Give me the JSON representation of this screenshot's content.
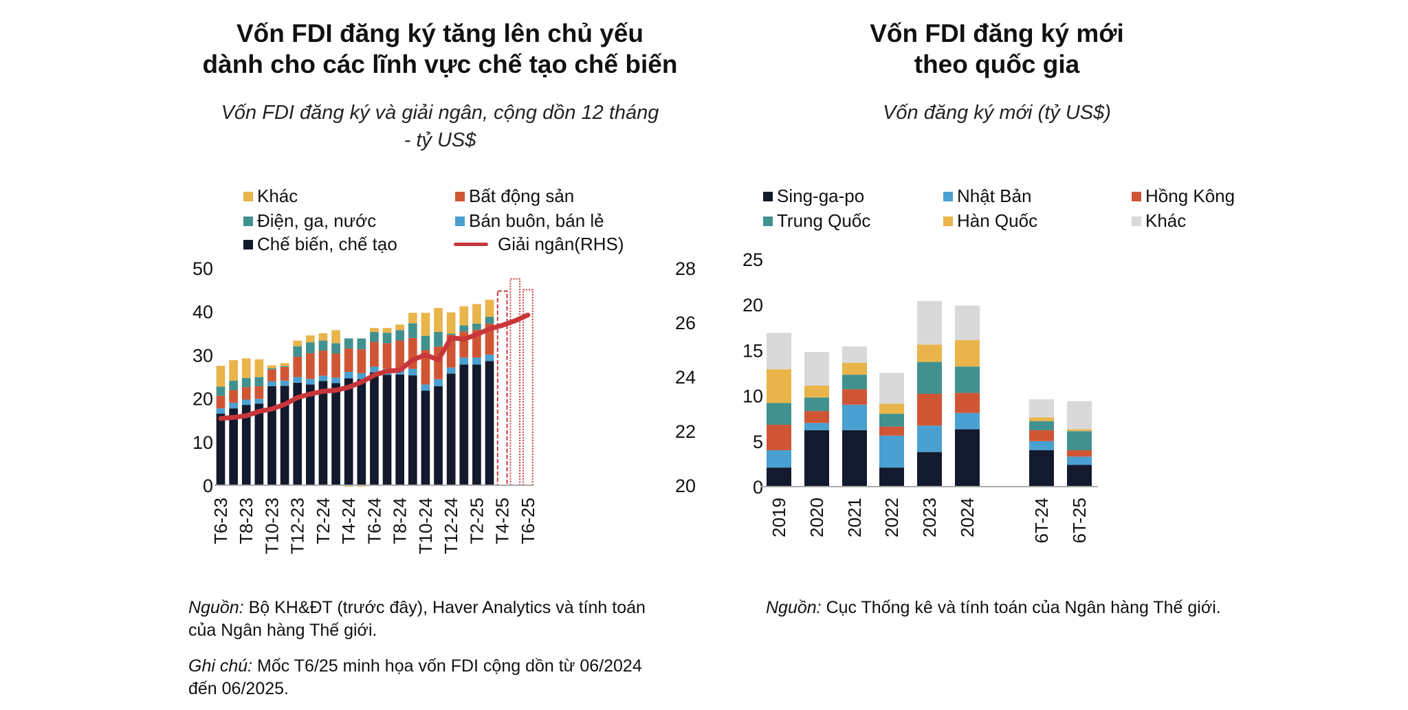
{
  "chart_data": [
    {
      "type": "bar",
      "stacked": true,
      "title": "Vốn FDI đăng ký tăng lên chủ yếu dành cho các lĩnh vực chế tạo chế biến",
      "title_lines": [
        "Vốn FDI đăng ký tăng lên chủ yếu",
        "dành cho các lĩnh vực chế tạo chế biến"
      ],
      "subtitle_lines": [
        "Vốn FDI đăng ký và giải ngân, cộng dồn 12 tháng",
        "- tỷ US$"
      ],
      "x_tick_labels": [
        "T6-23",
        "T8-23",
        "T10-23",
        "T12-23",
        "T2-24",
        "T4-24",
        "T6-24",
        "T8-24",
        "T10-24",
        "T12-24",
        "T2-25",
        "T4-25",
        "T6-25"
      ],
      "ylim": [
        0,
        50
      ],
      "y_ticks": [
        "0",
        "10",
        "20",
        "30",
        "40",
        "50"
      ],
      "y2lim": [
        20,
        28
      ],
      "y2_ticks": [
        "20",
        "22",
        "24",
        "26",
        "28"
      ],
      "legend_placement": "top",
      "series": [
        {
          "name": "Chế biến, chế tạo",
          "color": "#131a2e",
          "values": [
            16.5,
            17.7,
            18.5,
            18.8,
            22.8,
            22.9,
            23.6,
            23.2,
            24.0,
            23.5,
            24.6,
            24.4,
            26.0,
            25.4,
            25.5,
            25.3,
            21.8,
            22.8,
            25.7,
            27.8,
            27.8,
            28.6
          ]
        },
        {
          "name": "Bán buôn, bán lẻ",
          "color": "#4aa0d0",
          "values": [
            1.2,
            1.3,
            1.2,
            1.1,
            1.1,
            1.2,
            1.3,
            1.3,
            1.2,
            1.3,
            1.5,
            1.4,
            1.3,
            1.4,
            0.8,
            1.5,
            1.4,
            1.6,
            1.4,
            1.6,
            1.6,
            1.5
          ]
        },
        {
          "name": "Bất động sản",
          "color": "#d05535",
          "values": [
            2.9,
            2.9,
            2.9,
            2.9,
            2.7,
            3.1,
            4.7,
            5.9,
            5.8,
            5.5,
            5.4,
            5.5,
            5.7,
            5.9,
            7.0,
            7.1,
            7.9,
            7.5,
            7.5,
            6.0,
            6.4,
            7.1
          ]
        },
        {
          "name": "Điện, ga, nước",
          "color": "#41918f",
          "values": [
            2.1,
            2.2,
            2.1,
            2.1,
            0.3,
            0.2,
            2.4,
            2.5,
            2.3,
            2.4,
            2.3,
            2.5,
            2.3,
            2.4,
            2.4,
            3.4,
            3.3,
            3.4,
            0.3,
            1.4,
            1.4,
            1.6
          ]
        },
        {
          "name": "Khác",
          "color": "#e9b44a",
          "values": [
            4.8,
            4.7,
            4.5,
            4.1,
            0.7,
            0.7,
            1.3,
            1.6,
            1.7,
            3.0,
            -0.3,
            -0.3,
            0.9,
            1.1,
            1.3,
            2.4,
            5.3,
            5.5,
            4.9,
            4.4,
            4.5,
            3.9
          ]
        },
        {
          "name": "Giải ngân(RHS)",
          "type": "line",
          "axis": "right",
          "color": "#c8363a",
          "values": [
            22.46,
            22.5,
            22.56,
            22.72,
            22.81,
            22.98,
            23.23,
            23.36,
            23.46,
            23.5,
            23.61,
            23.8,
            24.06,
            24.2,
            24.24,
            24.62,
            24.8,
            24.62,
            25.43,
            25.38,
            25.55,
            25.76,
            25.89,
            26.06,
            26.27
          ]
        }
      ],
      "projection_totals": {
        "color": "#c8363a",
        "values": [
          44.7,
          47.5,
          45.0
        ],
        "styles": [
          "dashed",
          "dotted",
          "dotted"
        ]
      },
      "notes": {
        "source_label": "Nguồn:",
        "source_text": " Bộ KH&ĐT (trước đây), Haver Analytics và tính toán",
        "source_text2": "của Ngân hàng Thế giới.",
        "note_label": "Ghi chú:",
        "note_text": " Mốc T6/25 minh họa vốn FDI cộng dồn từ 06/2024",
        "note_text2": "đến 06/2025."
      }
    },
    {
      "type": "bar",
      "stacked": true,
      "title_lines": [
        "Vốn FDI đăng ký mới",
        "theo quốc gia"
      ],
      "subtitle_lines": [
        "Vốn đăng ký mới (tỷ US$)"
      ],
      "categories": [
        "2019",
        "2020",
        "2021",
        "2022",
        "2023",
        "2024",
        "6T-24",
        "6T-25"
      ],
      "ylim": [
        0,
        25
      ],
      "y_ticks": [
        "0",
        "5",
        "10",
        "15",
        "20",
        "25"
      ],
      "legend_placement": "top",
      "series": [
        {
          "name": "Sing-ga-po",
          "color": "#131a2e",
          "values": [
            2.1,
            6.2,
            6.2,
            2.1,
            3.8,
            6.3,
            4.0,
            2.4
          ]
        },
        {
          "name": "Nhật Bản",
          "color": "#4aa0d0",
          "values": [
            1.9,
            0.8,
            2.8,
            3.5,
            2.9,
            1.8,
            1.0,
            0.9
          ]
        },
        {
          "name": "Hồng Kông",
          "color": "#d05535",
          "values": [
            2.8,
            1.3,
            1.7,
            1.0,
            3.5,
            2.2,
            1.2,
            0.7
          ]
        },
        {
          "name": "Trung Quốc",
          "color": "#41918f",
          "values": [
            2.4,
            1.5,
            1.6,
            1.4,
            3.5,
            2.9,
            1.0,
            2.1
          ]
        },
        {
          "name": "Hàn Quốc",
          "color": "#e9b44a",
          "values": [
            3.7,
            1.3,
            1.3,
            1.1,
            1.9,
            2.9,
            0.4,
            0.2
          ]
        },
        {
          "name": "Khác",
          "color": "#d9d9d9",
          "values": [
            4.0,
            3.7,
            1.8,
            3.4,
            4.8,
            3.8,
            2.0,
            3.1
          ]
        }
      ],
      "notes": {
        "source_label": "Nguồn:",
        "source_text": " Cục Thống kê và tính toán của Ngân hàng Thế giới."
      }
    }
  ]
}
